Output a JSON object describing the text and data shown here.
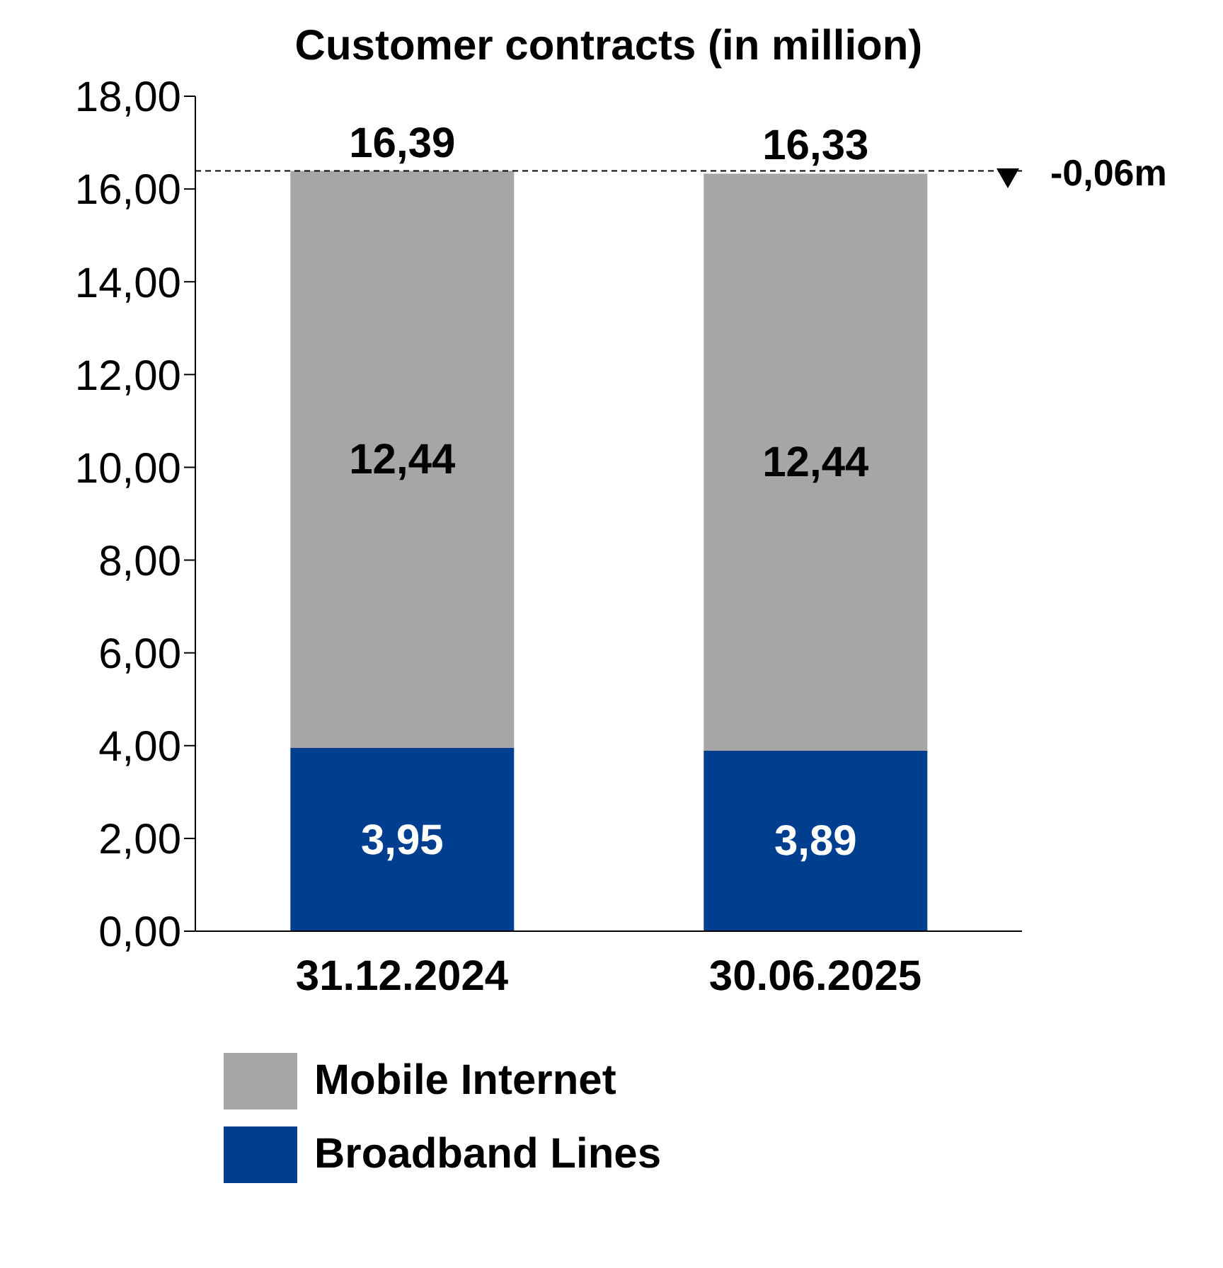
{
  "chart_data": {
    "type": "bar",
    "title": "Customer contracts (in million)",
    "stacked": true,
    "categories": [
      "31.12.2024",
      "30.06.2025"
    ],
    "series": [
      {
        "name": "Broadband Lines",
        "color": "#003f8f",
        "values": [
          3.95,
          3.89
        ],
        "value_labels": [
          "3,95",
          "3,89"
        ]
      },
      {
        "name": "Mobile Internet",
        "color": "#a6a6a6",
        "values": [
          12.44,
          12.44
        ],
        "value_labels": [
          "12,44",
          "12,44"
        ]
      }
    ],
    "totals": [
      "16,39",
      "16,33"
    ],
    "ylim": [
      0,
      18
    ],
    "yticks": [
      {
        "value": 0,
        "label": "0,00"
      },
      {
        "value": 2,
        "label": "2,00"
      },
      {
        "value": 4,
        "label": "4,00"
      },
      {
        "value": 6,
        "label": "6,00"
      },
      {
        "value": 8,
        "label": "8,00"
      },
      {
        "value": 10,
        "label": "10,00"
      },
      {
        "value": 12,
        "label": "12,00"
      },
      {
        "value": 14,
        "label": "14,00"
      },
      {
        "value": 16,
        "label": "16,00"
      },
      {
        "value": 18,
        "label": "18,00"
      }
    ],
    "ref_lines": [
      {
        "axis": "y",
        "value": 16.39,
        "label": "-0,06m",
        "line_style": "dashed",
        "color": "#000000"
      }
    ],
    "grid": false,
    "legend": "bottom"
  }
}
